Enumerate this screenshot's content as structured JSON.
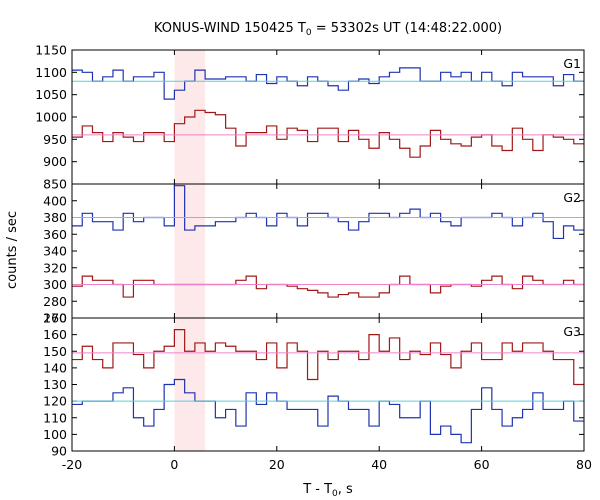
{
  "chart_data": {
    "type": "line",
    "title": {
      "prefix": "KONUS-WIND 150425 T",
      "sub": "0",
      "suffix": " = 53302s UT (14:48:22.000)"
    },
    "xlabel": {
      "prefix": "T - T",
      "sub": "0",
      "suffix": ", s"
    },
    "ylabel": "counts / sec",
    "xlim": [
      -20,
      80
    ],
    "x_ticks": [
      -20,
      0,
      20,
      40,
      60,
      80
    ],
    "x_tick_labels": [
      "-20",
      "0",
      "20",
      "40",
      "60",
      "80"
    ],
    "highlight_interval": [
      0,
      6
    ],
    "grid": false,
    "colors": {
      "blue": "#1f33b0",
      "red": "#a01818",
      "cyan": "#5ad0d8",
      "pink": "#f080c8",
      "highlight": "#fde8ea"
    },
    "bin_edges": [
      -20,
      -18,
      -16,
      -14,
      -12,
      -10,
      -8,
      -6,
      -4,
      -2,
      0,
      2,
      4,
      6,
      8,
      10,
      12,
      14,
      16,
      18,
      20,
      22,
      24,
      26,
      28,
      30,
      32,
      34,
      36,
      38,
      40,
      42,
      44,
      46,
      48,
      50,
      52,
      54,
      56,
      58,
      60,
      62,
      64,
      66,
      68,
      70,
      72,
      74,
      76,
      78,
      80
    ],
    "panels": [
      {
        "label": "G1",
        "ylim": [
          850,
          1150
        ],
        "y_ticks": [
          850,
          900,
          950,
          1000,
          1050,
          1100,
          1150
        ],
        "y_tick_labels": [
          "850",
          "900",
          "950",
          "1000",
          "1050",
          "1100",
          "1150"
        ],
        "series": [
          {
            "color": "blue",
            "values": [
              1105,
              1100,
              1080,
              1090,
              1105,
              1080,
              1090,
              1090,
              1100,
              1040,
              1060,
              1080,
              1105,
              1085,
              1085,
              1090,
              1090,
              1080,
              1095,
              1075,
              1090,
              1080,
              1070,
              1090,
              1080,
              1070,
              1060,
              1080,
              1085,
              1075,
              1090,
              1100,
              1110,
              1110,
              1080,
              1080,
              1100,
              1090,
              1100,
              1080,
              1100,
              1080,
              1070,
              1100,
              1090,
              1090,
              1090,
              1070,
              1095,
              1080
            ]
          },
          {
            "color": "red",
            "values": [
              955,
              980,
              965,
              945,
              965,
              955,
              945,
              965,
              965,
              945,
              985,
              1000,
              1015,
              1010,
              1005,
              975,
              935,
              965,
              965,
              980,
              950,
              975,
              970,
              945,
              975,
              975,
              945,
              970,
              950,
              930,
              965,
              950,
              930,
              910,
              935,
              970,
              950,
              940,
              935,
              955,
              960,
              935,
              925,
              975,
              950,
              925,
              960,
              955,
              950,
              940
            ]
          },
          {
            "color": "cyan",
            "const": 1080
          },
          {
            "color": "pink",
            "const": 960
          }
        ]
      },
      {
        "label": "G2",
        "ylim": [
          260,
          420
        ],
        "y_ticks": [
          260,
          280,
          300,
          320,
          340,
          360,
          380,
          400
        ],
        "y_tick_labels": [
          "260",
          "280",
          "300",
          "320",
          "340",
          "360",
          "380",
          "400"
        ],
        "series": [
          {
            "color": "blue",
            "values": [
              370,
              385,
              375,
              375,
              365,
              385,
              375,
              380,
              380,
              370,
              418,
              365,
              370,
              370,
              375,
              375,
              380,
              385,
              380,
              370,
              385,
              380,
              370,
              385,
              385,
              380,
              375,
              365,
              375,
              385,
              385,
              380,
              385,
              390,
              380,
              385,
              375,
              370,
              380,
              380,
              380,
              385,
              380,
              370,
              380,
              385,
              375,
              355,
              370,
              365
            ]
          },
          {
            "color": "red",
            "values": [
              298,
              310,
              305,
              305,
              300,
              285,
              305,
              305,
              300,
              300,
              300,
              300,
              300,
              300,
              300,
              300,
              305,
              310,
              295,
              300,
              300,
              298,
              295,
              293,
              290,
              285,
              288,
              290,
              285,
              285,
              290,
              300,
              310,
              300,
              300,
              290,
              298,
              300,
              300,
              298,
              305,
              310,
              300,
              295,
              310,
              305,
              300,
              300,
              305,
              300
            ]
          },
          {
            "color": "cyan",
            "const": 380
          },
          {
            "color": "pink",
            "const": 300
          }
        ]
      },
      {
        "label": "G3",
        "ylim": [
          90,
          170
        ],
        "y_ticks": [
          90,
          100,
          110,
          120,
          130,
          140,
          150,
          160,
          170
        ],
        "y_tick_labels": [
          "90",
          "100",
          "110",
          "120",
          "130",
          "140",
          "150",
          "160",
          "170"
        ],
        "series": [
          {
            "color": "blue",
            "values": [
              118,
              120,
              120,
              120,
              125,
              128,
              110,
              105,
              115,
              130,
              133,
              125,
              120,
              120,
              110,
              115,
              105,
              125,
              118,
              125,
              120,
              115,
              115,
              115,
              105,
              123,
              120,
              115,
              115,
              105,
              120,
              118,
              110,
              110,
              120,
              100,
              105,
              100,
              95,
              115,
              128,
              115,
              105,
              110,
              115,
              125,
              115,
              115,
              120,
              108
            ]
          },
          {
            "color": "red",
            "values": [
              145,
              153,
              145,
              140,
              155,
              155,
              148,
              140,
              150,
              153,
              163,
              150,
              155,
              150,
              155,
              153,
              150,
              150,
              145,
              155,
              140,
              155,
              150,
              133,
              150,
              145,
              150,
              150,
              145,
              160,
              150,
              158,
              145,
              150,
              148,
              155,
              148,
              140,
              150,
              155,
              145,
              145,
              155,
              150,
              155,
              155,
              150,
              145,
              145,
              130
            ]
          },
          {
            "color": "cyan",
            "const": 120
          },
          {
            "color": "pink",
            "const": 149
          }
        ]
      }
    ]
  }
}
